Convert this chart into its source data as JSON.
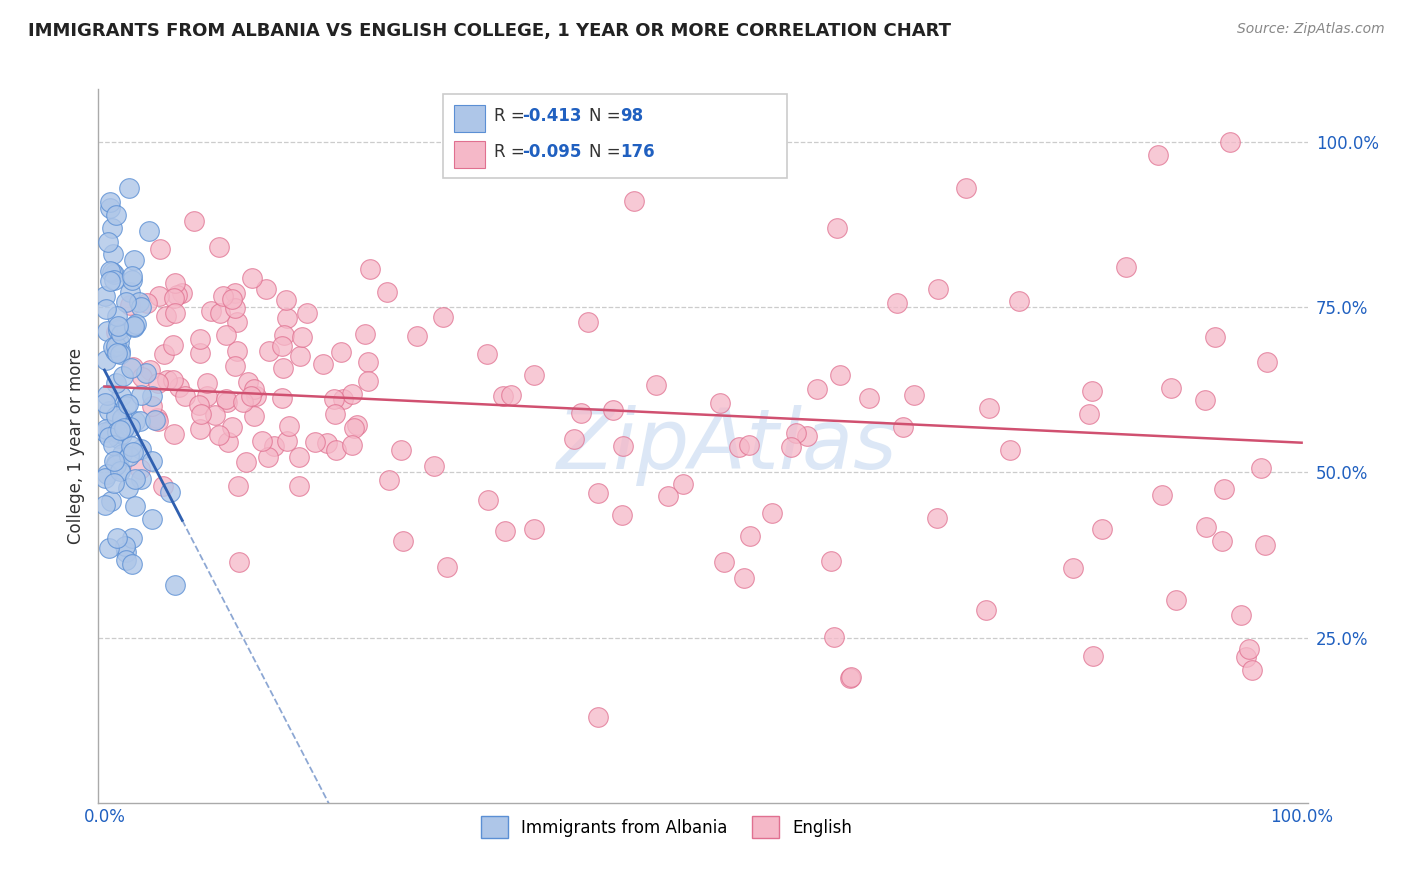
{
  "title": "IMMIGRANTS FROM ALBANIA VS ENGLISH COLLEGE, 1 YEAR OR MORE CORRELATION CHART",
  "source": "Source: ZipAtlas.com",
  "ylabel": "College, 1 year or more",
  "legend_label1": "Immigrants from Albania",
  "legend_label2": "English",
  "R1": -0.413,
  "N1": 98,
  "R2": -0.095,
  "N2": 176,
  "color_blue_fill": "#aec6e8",
  "color_blue_edge": "#5b8fd4",
  "color_pink_fill": "#f5b8c8",
  "color_pink_edge": "#e07090",
  "color_blue_line": "#3060b0",
  "color_pink_line": "#d05070",
  "ytick_vals": [
    0.25,
    0.5,
    0.75,
    1.0
  ],
  "ytick_labels": [
    "25.0%",
    "50.0%",
    "75.0%",
    "100.0%"
  ],
  "watermark": "ZipAtlas",
  "seed": 12345
}
